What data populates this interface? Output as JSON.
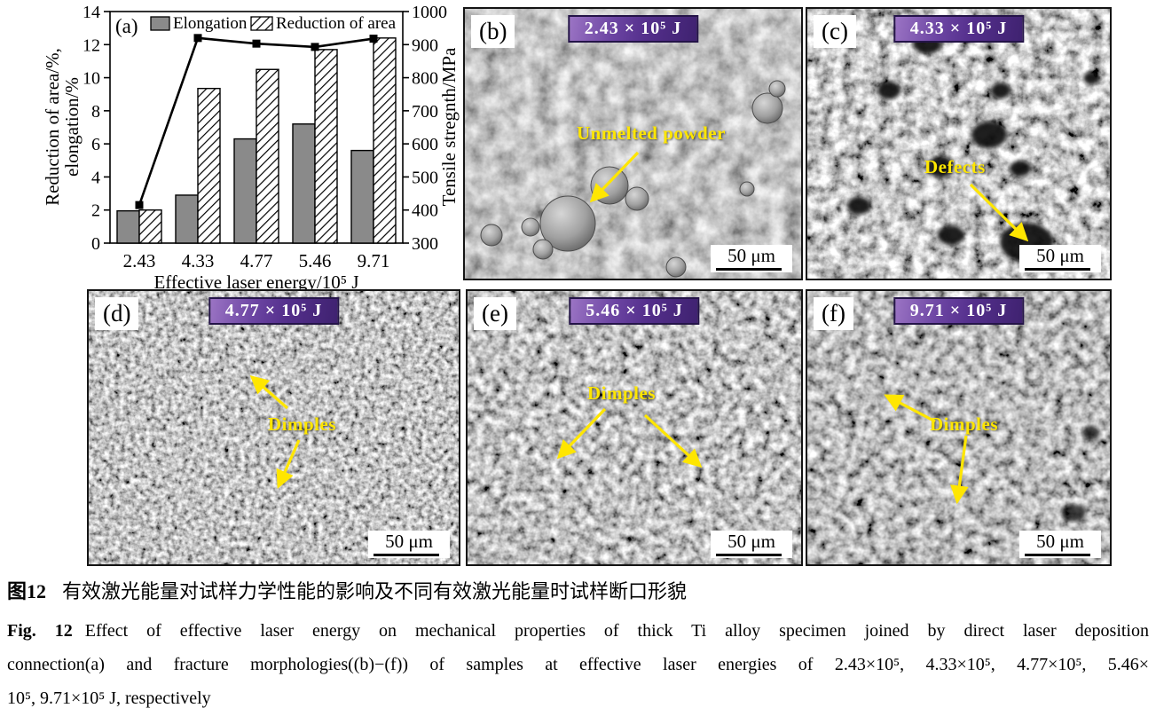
{
  "figure": {
    "caption": {
      "zh_label": "图12",
      "zh_text": "有效激光能量对试样力学性能的影响及不同有效激光能量时试样断口形貌",
      "en_label": "Fig. 12",
      "en_line1": "Effect of effective laser energy on mechanical properties of thick Ti alloy specimen joined by direct laser deposition",
      "en_line2": "connection(a) and fracture morphologies((b)−(f)) of samples at effective laser energies of 2.43×10⁵, 4.33×10⁵, 4.77×10⁵, 5.46×",
      "en_line3": "10⁵, 9.71×10⁵ J, respectively"
    }
  },
  "chart_data": {
    "type": "bar+line",
    "panel_label": "(a)",
    "categories": [
      "2.43",
      "4.33",
      "4.77",
      "5.46",
      "9.71"
    ],
    "series": [
      {
        "name": "Elongation",
        "type": "bar",
        "axis": "left",
        "values": [
          1.95,
          2.9,
          6.3,
          7.2,
          5.6
        ]
      },
      {
        "name": "Reduction of area",
        "type": "bar",
        "axis": "left",
        "values": [
          2.0,
          9.35,
          10.5,
          11.7,
          12.4
        ]
      },
      {
        "name": "Tensile strength",
        "type": "line",
        "axis": "right",
        "values": [
          415,
          920,
          903,
          893,
          918
        ]
      }
    ],
    "x_axis": {
      "label": "Effective laser energy/10⁵ J"
    },
    "left_axis": {
      "label": "Reduction of area/%, elongation/%",
      "label_lines": [
        "Reduction of area/%,",
        "elongation/%"
      ],
      "min": 0,
      "max": 14,
      "step": 2
    },
    "right_axis": {
      "label": "Tensile stregnth/MPa",
      "min": 300,
      "max": 1000,
      "step": 100
    },
    "legend_position": "top-inside",
    "grid": false
  },
  "panels": [
    {
      "label": "(b)",
      "banner": "2.43 × 10⁵ J",
      "annotation": "Unmelted powder",
      "scalebar": "50 μm"
    },
    {
      "label": "(c)",
      "banner": "4.33 × 10⁵ J",
      "annotation": "Defects",
      "scalebar": "50 μm"
    },
    {
      "label": "(d)",
      "banner": "4.77 × 10⁵ J",
      "annotation": "Dimples",
      "scalebar": "50 μm"
    },
    {
      "label": "(e)",
      "banner": "5.46 × 10⁵ J",
      "annotation": "Dimples",
      "scalebar": "50 μm"
    },
    {
      "label": "(f)",
      "banner": "9.71 × 10⁵ J",
      "annotation": "Dimples",
      "scalebar": "50 μm"
    }
  ],
  "colors": {
    "banner_purple": "#5a3490",
    "annotation_yellow": "#ffe600",
    "bar_gray": "#8a8a8a",
    "axis_black": "#000000"
  }
}
